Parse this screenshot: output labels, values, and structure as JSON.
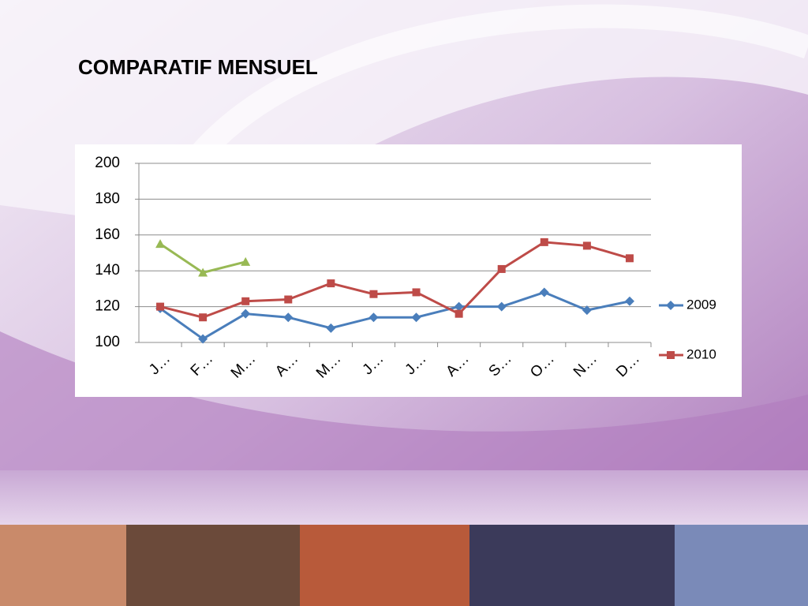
{
  "chart_data": {
    "type": "line",
    "title": "COMPARATIF MENSUEL",
    "categories": [
      "J…",
      "F…",
      "M…",
      "A…",
      "M…",
      "J…",
      "J…",
      "A…",
      "S…",
      "O…",
      "N…",
      "D…"
    ],
    "series": [
      {
        "name": "2009",
        "color": "#4a7ebb",
        "marker": "diamond",
        "values": [
          119,
          102,
          116,
          114,
          108,
          114,
          114,
          120,
          120,
          128,
          118,
          123
        ]
      },
      {
        "name": "2010",
        "color": "#be4b48",
        "marker": "square",
        "values": [
          120,
          114,
          123,
          124,
          133,
          127,
          128,
          116,
          141,
          156,
          154,
          147
        ]
      },
      {
        "color": "#98b954",
        "marker": "triangle",
        "values": [
          155,
          139,
          145,
          null,
          null,
          null,
          null,
          null,
          null,
          null,
          null,
          null
        ]
      }
    ],
    "ylim": [
      100,
      200
    ],
    "yticks": [
      100,
      120,
      140,
      160,
      180,
      200
    ],
    "grid": true,
    "legend": "right"
  }
}
